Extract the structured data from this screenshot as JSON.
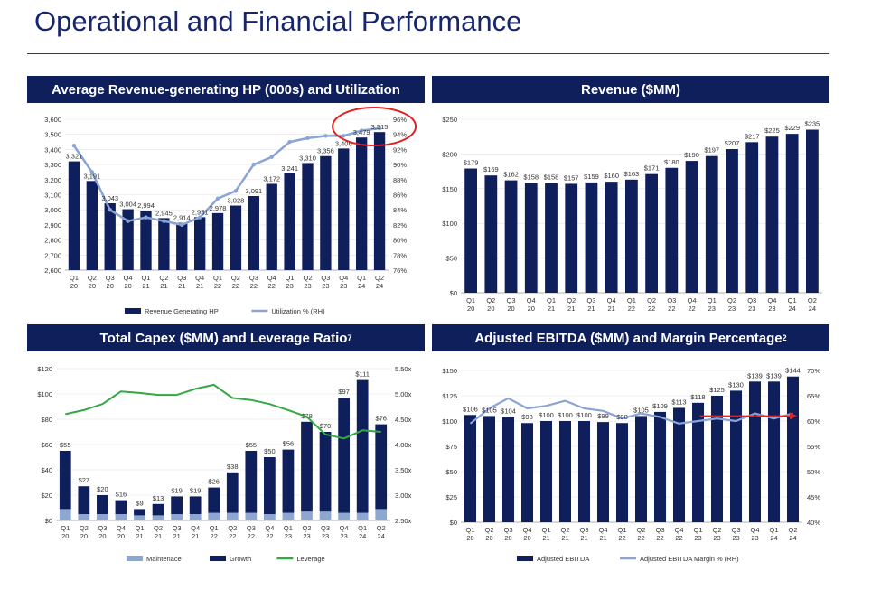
{
  "page": {
    "title": "Operational and Financial Performance"
  },
  "colors": {
    "navy": "#0e1f5b",
    "bar": "#0e1f5b",
    "line": "#8aa4d6",
    "maint": "#8ea7d0",
    "leverage": "#35a845",
    "highlight": "#e02222",
    "arrow": "#e02222"
  },
  "chart_data": [
    {
      "type": "bar",
      "title": "Average Revenue-generating HP (000s) and Utilization",
      "categories": [
        "Q1 20",
        "Q2 20",
        "Q3 20",
        "Q4 20",
        "Q1 21",
        "Q2 21",
        "Q3 21",
        "Q4 21",
        "Q1 22",
        "Q2 22",
        "Q3 22",
        "Q4 22",
        "Q1 23",
        "Q2 23",
        "Q3 23",
        "Q4 23",
        "Q1 24",
        "Q2 24"
      ],
      "series": [
        {
          "name": "Revenue Generating HP",
          "kind": "bar",
          "axis": "left",
          "values": [
            3321,
            3191,
            3043,
            3004,
            2994,
            2945,
            2914,
            2951,
            2978,
            3028,
            3091,
            3172,
            3241,
            3310,
            3356,
            3406,
            3479,
            3515
          ],
          "labels": [
            "3,321",
            "3,191",
            "3,043",
            "3,004",
            "2,994",
            "2,945",
            "2,914",
            "2,951",
            "2,978",
            "3,028",
            "3,091",
            "3,172",
            "3,241",
            "3,310",
            "3,356",
            "3,406",
            "3,479",
            "3,515"
          ]
        },
        {
          "name": "Utilization % (RH)",
          "kind": "line",
          "axis": "right",
          "values": [
            92.5,
            89,
            84,
            82.5,
            83,
            82.5,
            82,
            83,
            85.5,
            86.5,
            90,
            91,
            93,
            93.5,
            93.8,
            93.8,
            94.5,
            94.8
          ]
        }
      ],
      "ylim": [
        2600,
        3600
      ],
      "yticks": [
        "2,600",
        "2,700",
        "2,800",
        "2,900",
        "3,000",
        "3,100",
        "3,200",
        "3,300",
        "3,400",
        "3,500",
        "3,600"
      ],
      "y2lim": [
        76,
        96
      ],
      "y2ticks": [
        "76%",
        "78%",
        "80%",
        "82%",
        "84%",
        "86%",
        "88%",
        "90%",
        "92%",
        "94%",
        "96%"
      ],
      "legend": [
        "Revenue Generating HP",
        "Utilization % (RH)"
      ],
      "legend_position": "bottom",
      "annotation": "red circle around Q1 24 - Q2 24"
    },
    {
      "type": "bar",
      "title": "Revenue ($MM)",
      "categories": [
        "Q1 20",
        "Q2 20",
        "Q3 20",
        "Q4 20",
        "Q1 21",
        "Q2 21",
        "Q3 21",
        "Q4 21",
        "Q1 22",
        "Q2 22",
        "Q3 22",
        "Q4 22",
        "Q1 23",
        "Q2 23",
        "Q3 23",
        "Q4 23",
        "Q1 24",
        "Q2 24"
      ],
      "values": [
        179,
        169,
        162,
        158,
        158,
        157,
        159,
        160,
        163,
        171,
        180,
        190,
        197,
        207,
        217,
        225,
        229,
        235
      ],
      "labels": [
        "$179",
        "$169",
        "$162",
        "$158",
        "$158",
        "$157",
        "$159",
        "$160",
        "$163",
        "$171",
        "$180",
        "$190",
        "$197",
        "$207",
        "$217",
        "$225",
        "$229",
        "$235"
      ],
      "ylim": [
        0,
        250
      ],
      "yticks": [
        "$0",
        "$50",
        "$100",
        "$150",
        "$200",
        "$250"
      ]
    },
    {
      "type": "bar",
      "title": "Total Capex ($MM) and Leverage Ratio",
      "title_sup": "7",
      "categories": [
        "Q1 20",
        "Q2 20",
        "Q3 20",
        "Q4 20",
        "Q1 21",
        "Q2 21",
        "Q3 21",
        "Q4 21",
        "Q1 22",
        "Q2 22",
        "Q3 22",
        "Q4 22",
        "Q1 23",
        "Q2 23",
        "Q3 23",
        "Q4 23",
        "Q1 24",
        "Q2 24"
      ],
      "series": [
        {
          "name": "Maintenace",
          "kind": "stacked-bar",
          "axis": "left",
          "values": [
            9,
            5,
            5,
            5,
            4,
            4,
            5,
            5,
            6,
            6,
            6,
            5,
            6,
            7,
            7,
            6,
            6,
            9
          ]
        },
        {
          "name": "Growth",
          "kind": "stacked-bar",
          "axis": "left",
          "values": [
            46,
            22,
            15,
            11,
            5,
            9,
            14,
            14,
            20,
            32,
            49,
            45,
            50,
            71,
            63,
            91,
            105,
            67
          ]
        },
        {
          "name": "Leverage",
          "kind": "line",
          "axis": "right",
          "values": [
            4.6,
            4.68,
            4.8,
            5.05,
            5.02,
            4.98,
            4.98,
            5.1,
            5.18,
            4.92,
            4.88,
            4.8,
            4.68,
            4.55,
            4.2,
            4.12,
            4.28,
            4.25
          ]
        }
      ],
      "totals": [
        "$55",
        "$27",
        "$20",
        "$16",
        "$9",
        "$13",
        "$19",
        "$19",
        "$26",
        "$38",
        "$55",
        "$50",
        "$56",
        "$78",
        "$70",
        "$97",
        "$111",
        "$76"
      ],
      "ylim": [
        0,
        120
      ],
      "yticks": [
        "$0",
        "$20",
        "$40",
        "$60",
        "$80",
        "$100",
        "$120"
      ],
      "y2lim": [
        2.5,
        5.5
      ],
      "y2ticks": [
        "2.50x",
        "3.00x",
        "3.50x",
        "4.00x",
        "4.50x",
        "5.00x",
        "5.50x"
      ],
      "legend": [
        "Maintenace",
        "Growth",
        "Leverage"
      ],
      "legend_position": "bottom"
    },
    {
      "type": "bar",
      "title": "Adjusted EBITDA ($MM) and Margin Percentage",
      "title_sup": "2",
      "categories": [
        "Q1 20",
        "Q2 20",
        "Q3 20",
        "Q4 20",
        "Q1 21",
        "Q2 21",
        "Q3 21",
        "Q4 21",
        "Q1 22",
        "Q2 22",
        "Q3 22",
        "Q4 22",
        "Q1 23",
        "Q2 23",
        "Q3 23",
        "Q4 23",
        "Q1 24",
        "Q2 24"
      ],
      "series": [
        {
          "name": "Adjusted EBITDA",
          "kind": "bar",
          "axis": "left",
          "values": [
            106,
            105,
            104,
            98,
            100,
            100,
            100,
            99,
            98,
            105,
            109,
            113,
            118,
            125,
            130,
            139,
            139,
            144
          ],
          "labels": [
            "$106",
            "$105",
            "$104",
            "$98",
            "$100",
            "$100",
            "$100",
            "$99",
            "$98",
            "$105",
            "$109",
            "$113",
            "$118",
            "$125",
            "$130",
            "$139",
            "$139",
            "$144"
          ]
        },
        {
          "name": "Adjusted EBITDA Margin % (RH)",
          "kind": "line",
          "axis": "right",
          "values": [
            59.5,
            62.5,
            64.5,
            62.5,
            63,
            64,
            62.5,
            62,
            60.5,
            61.5,
            60.8,
            59.5,
            60,
            60.5,
            60,
            61.5,
            60.5,
            61.5
          ]
        }
      ],
      "ylim": [
        0,
        150
      ],
      "yticks": [
        "$0",
        "$25",
        "$50",
        "$75",
        "$100",
        "$125",
        "$150"
      ],
      "y2lim": [
        40,
        70
      ],
      "y2ticks": [
        "40%",
        "45%",
        "50%",
        "55%",
        "60%",
        "65%",
        "70%"
      ],
      "legend": [
        "Adjusted EBITDA",
        "Adjusted EBITDA Margin % (RH)"
      ],
      "legend_position": "bottom",
      "annotation": "red arrow at 61%"
    }
  ]
}
